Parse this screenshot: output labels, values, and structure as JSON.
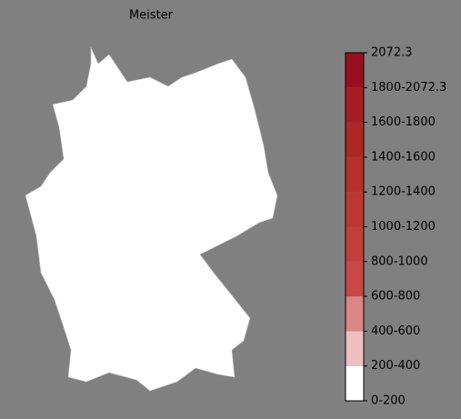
{
  "title": "Meister",
  "colorbar": {
    "labels": [
      "0-200",
      "200-400",
      "400-600",
      "600-800",
      "800-1000",
      "1000-1200",
      "1200-1400",
      "1400-1600",
      "1600-1800",
      "1800-2072.3",
      "2072.3"
    ],
    "colors": [
      "#ffffff",
      "#eebfbf",
      "#db8585",
      "#c94747",
      "#c43e3e",
      "#bd3636",
      "#b62f2f",
      "#ae2727",
      "#a61e24",
      "#9a0f1f"
    ]
  }
}
